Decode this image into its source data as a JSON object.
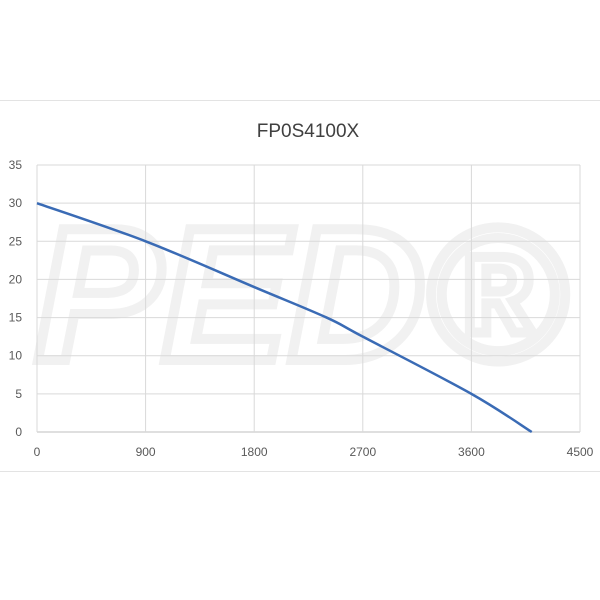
{
  "watermark": "PED®",
  "chart_data": {
    "type": "line",
    "title": "FP0S4100X",
    "xlabel": "",
    "ylabel": "",
    "xlim": [
      0,
      4500
    ],
    "ylim": [
      0,
      35
    ],
    "xticks": [
      0,
      900,
      1800,
      2700,
      3600,
      4500
    ],
    "yticks": [
      0,
      5,
      10,
      15,
      20,
      25,
      30,
      35
    ],
    "grid": true,
    "legend": "none",
    "series": [
      {
        "color": "#3a6bb5",
        "x": [
          0,
          900,
          1800,
          2400,
          2700,
          3600,
          4100
        ],
        "y": [
          30,
          25,
          19,
          15,
          12.5,
          5,
          0
        ]
      }
    ]
  }
}
